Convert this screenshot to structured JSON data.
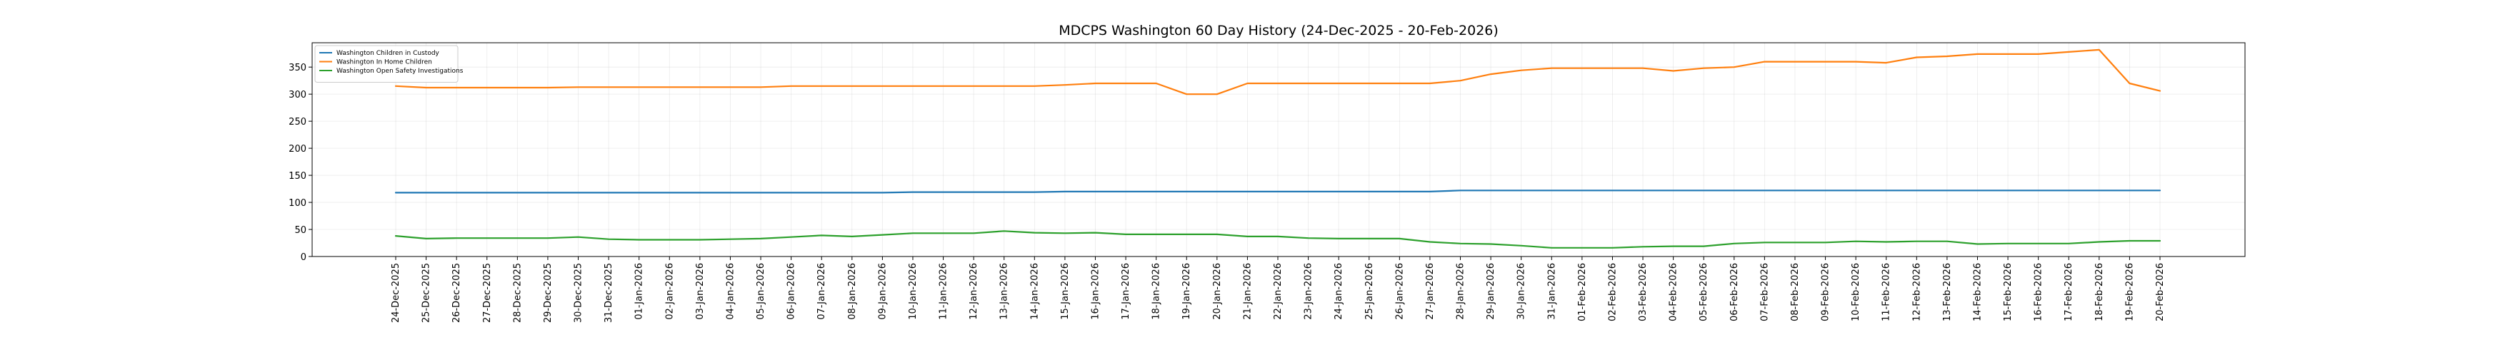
{
  "chart_data": {
    "type": "line",
    "title": "MDCPS Washington 60 Day History (24-Dec-2025 - 20-Feb-2026)",
    "xlabel": "",
    "ylabel": "",
    "ylim": [
      0,
      395
    ],
    "yticks": [
      0,
      50,
      100,
      150,
      200,
      250,
      300,
      350
    ],
    "grid": true,
    "legend_position": "top-left",
    "categories": [
      "24-Dec-2025",
      "25-Dec-2025",
      "26-Dec-2025",
      "27-Dec-2025",
      "28-Dec-2025",
      "29-Dec-2025",
      "30-Dec-2025",
      "31-Dec-2025",
      "01-Jan-2026",
      "02-Jan-2026",
      "03-Jan-2026",
      "04-Jan-2026",
      "05-Jan-2026",
      "06-Jan-2026",
      "07-Jan-2026",
      "08-Jan-2026",
      "09-Jan-2026",
      "10-Jan-2026",
      "11-Jan-2026",
      "12-Jan-2026",
      "13-Jan-2026",
      "14-Jan-2026",
      "15-Jan-2026",
      "16-Jan-2026",
      "17-Jan-2026",
      "18-Jan-2026",
      "19-Jan-2026",
      "20-Jan-2026",
      "21-Jan-2026",
      "22-Jan-2026",
      "23-Jan-2026",
      "24-Jan-2026",
      "25-Jan-2026",
      "26-Jan-2026",
      "27-Jan-2026",
      "28-Jan-2026",
      "29-Jan-2026",
      "30-Jan-2026",
      "31-Jan-2026",
      "01-Feb-2026",
      "02-Feb-2026",
      "03-Feb-2026",
      "04-Feb-2026",
      "05-Feb-2026",
      "06-Feb-2026",
      "07-Feb-2026",
      "08-Feb-2026",
      "09-Feb-2026",
      "10-Feb-2026",
      "11-Feb-2026",
      "12-Feb-2026",
      "13-Feb-2026",
      "14-Feb-2026",
      "15-Feb-2026",
      "16-Feb-2026",
      "17-Feb-2026",
      "18-Feb-2026",
      "19-Feb-2026",
      "20-Feb-2026"
    ],
    "series": [
      {
        "name": "Washington Children in Custody",
        "color": "#1f77b4",
        "values": [
          118,
          118,
          118,
          118,
          118,
          118,
          118,
          118,
          118,
          118,
          118,
          118,
          118,
          118,
          118,
          118,
          118,
          119,
          119,
          119,
          119,
          119,
          120,
          120,
          120,
          120,
          120,
          120,
          120,
          120,
          120,
          120,
          120,
          120,
          120,
          122,
          122,
          122,
          122,
          122,
          122,
          122,
          122,
          122,
          122,
          122,
          122,
          122,
          122,
          122,
          122,
          122,
          122,
          122,
          122,
          122,
          122,
          122,
          122
        ]
      },
      {
        "name": "Washington In Home Children",
        "color": "#ff7f0e",
        "values": [
          315,
          312,
          312,
          312,
          312,
          312,
          313,
          313,
          313,
          313,
          313,
          313,
          313,
          315,
          315,
          315,
          315,
          315,
          315,
          315,
          315,
          315,
          317,
          320,
          320,
          320,
          300,
          300,
          320,
          320,
          320,
          320,
          320,
          320,
          320,
          325,
          337,
          344,
          348,
          348,
          348,
          348,
          343,
          348,
          350,
          360,
          360,
          360,
          360,
          358,
          368,
          370,
          374,
          374,
          374,
          378,
          382,
          320,
          306
        ]
      },
      {
        "name": "Washington Open Safety Investigations",
        "color": "#2ca02c",
        "values": [
          38,
          33,
          34,
          34,
          34,
          34,
          36,
          32,
          31,
          31,
          31,
          32,
          33,
          36,
          39,
          37,
          40,
          43,
          43,
          43,
          47,
          44,
          43,
          44,
          41,
          41,
          41,
          41,
          37,
          37,
          34,
          33,
          33,
          33,
          27,
          24,
          23,
          20,
          16,
          16,
          16,
          18,
          19,
          19,
          24,
          26,
          26,
          26,
          28,
          27,
          28,
          28,
          23,
          24,
          24,
          24,
          27,
          29,
          29
        ]
      }
    ]
  }
}
